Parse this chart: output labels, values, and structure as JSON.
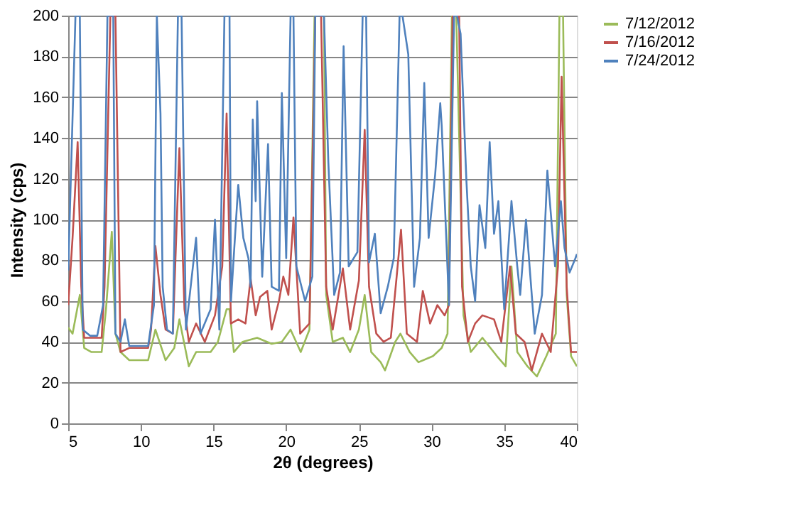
{
  "chart_data": {
    "type": "line",
    "xlabel": "2θ (degrees)",
    "ylabel": "Intensity (cps)",
    "xlim": [
      5,
      40
    ],
    "xticks": [
      5,
      10,
      15,
      20,
      25,
      30,
      35,
      40
    ],
    "ylim": [
      0,
      200
    ],
    "yticks": [
      0,
      20,
      40,
      60,
      80,
      100,
      120,
      140,
      160,
      180,
      200
    ],
    "grid": "y",
    "legend": "right",
    "marker": "none",
    "line_style": "solid",
    "series": [
      {
        "name": "7/12/2012",
        "color": "#9bbb59",
        "x": [
          5.0,
          5.3,
          5.8,
          6.1,
          6.6,
          7.3,
          7.6,
          8.0,
          8.25,
          8.6,
          9.2,
          10.5,
          11.0,
          11.7,
          12.3,
          12.65,
          13.3,
          13.8,
          14.8,
          15.3,
          15.9,
          16.1,
          16.4,
          17.0,
          18.0,
          19.0,
          19.7,
          20.3,
          21.0,
          21.6,
          21.95,
          22.1,
          22.6,
          22.75,
          23.2,
          23.9,
          24.4,
          25.0,
          25.4,
          25.85,
          26.5,
          26.8,
          27.5,
          27.86,
          28.5,
          29.1,
          30.1,
          30.7,
          31.1,
          31.4,
          31.7,
          32.2,
          32.7,
          33.5,
          34.5,
          35.1,
          35.5,
          35.9,
          36.6,
          37.25,
          37.9,
          38.55,
          38.8,
          39.05,
          39.3,
          39.6,
          40.0
        ],
        "values": [
          47,
          44,
          63,
          37,
          35,
          35,
          56,
          94,
          44,
          35,
          31,
          31,
          46,
          31,
          37,
          51,
          28,
          35,
          35,
          40,
          56,
          56,
          35,
          40,
          42,
          39,
          40,
          46,
          35,
          46,
          200,
          200,
          200,
          63,
          40,
          42,
          35,
          46,
          63,
          35,
          30,
          26,
          40,
          44,
          35,
          30,
          33,
          37,
          44,
          200,
          200,
          53,
          35,
          42,
          33,
          28,
          77,
          35,
          28,
          23,
          33,
          44,
          200,
          200,
          63,
          33,
          28
        ]
      },
      {
        "name": "7/16/2012",
        "color": "#c0504d",
        "x": [
          5.0,
          5.3,
          5.65,
          5.9,
          6.1,
          6.6,
          7.3,
          7.5,
          7.9,
          8.25,
          8.6,
          9.2,
          10.5,
          10.7,
          11.0,
          11.35,
          11.7,
          12.2,
          12.45,
          12.65,
          13.0,
          13.3,
          13.8,
          14.4,
          15.1,
          15.6,
          15.9,
          16.2,
          16.7,
          17.2,
          17.55,
          17.9,
          18.2,
          18.7,
          19.0,
          19.5,
          19.8,
          20.15,
          20.5,
          20.96,
          21.6,
          22.0,
          22.4,
          22.75,
          23.2,
          23.9,
          24.4,
          25.0,
          25.4,
          25.7,
          26.2,
          26.7,
          27.2,
          27.6,
          27.9,
          28.3,
          29.0,
          29.4,
          29.9,
          30.4,
          30.9,
          31.2,
          31.45,
          31.9,
          32.1,
          32.5,
          33.0,
          33.5,
          34.3,
          34.8,
          35.4,
          35.8,
          36.4,
          36.9,
          37.6,
          38.2,
          38.7,
          38.95,
          39.3,
          39.6,
          40.0
        ],
        "values": [
          58,
          91,
          138,
          67,
          42,
          42,
          42,
          67,
          200,
          200,
          35,
          37,
          37,
          46,
          87,
          63,
          46,
          44,
          95,
          135,
          56,
          40,
          49,
          40,
          53,
          77,
          152,
          49,
          51,
          49,
          71,
          53,
          62,
          65,
          46,
          60,
          72,
          63,
          101,
          44,
          49,
          200,
          200,
          67,
          46,
          76,
          46,
          70,
          144,
          67,
          44,
          40,
          42,
          72,
          95,
          44,
          40,
          65,
          49,
          58,
          53,
          58,
          200,
          200,
          67,
          40,
          49,
          53,
          51,
          40,
          77,
          44,
          40,
          26,
          44,
          35,
          77,
          170,
          67,
          35,
          35
        ]
      },
      {
        "name": "7/24/2012",
        "color": "#4f81bd",
        "x": [
          5.0,
          5.5,
          5.8,
          6.0,
          6.5,
          7.0,
          7.4,
          7.7,
          8.1,
          8.25,
          8.6,
          8.9,
          9.2,
          10.5,
          10.9,
          11.1,
          11.35,
          11.5,
          11.8,
          12.2,
          12.55,
          12.8,
          13.1,
          13.8,
          14.1,
          14.8,
          15.1,
          15.4,
          15.75,
          16.1,
          16.2,
          16.7,
          17.05,
          17.4,
          17.55,
          17.7,
          17.9,
          18.0,
          18.35,
          18.75,
          19.0,
          19.5,
          19.7,
          20.0,
          20.3,
          20.5,
          20.7,
          21.3,
          21.8,
          22.0,
          22.6,
          22.9,
          23.3,
          23.7,
          23.95,
          24.3,
          24.9,
          25.26,
          25.5,
          25.7,
          26.1,
          26.5,
          26.99,
          27.4,
          27.8,
          28.0,
          28.4,
          28.8,
          29.2,
          29.5,
          29.8,
          30.25,
          30.6,
          30.7,
          31.2,
          31.55,
          31.75,
          32.0,
          32.4,
          32.7,
          33.0,
          33.3,
          33.7,
          34.0,
          34.3,
          34.6,
          35.0,
          35.5,
          35.9,
          36.1,
          36.5,
          37.1,
          37.6,
          37.97,
          38.5,
          38.9,
          39.15,
          39.5,
          39.9,
          40.0
        ],
        "values": [
          75,
          200,
          200,
          46,
          43,
          43,
          58,
          200,
          200,
          44,
          40,
          51,
          38,
          38,
          58,
          200,
          152,
          67,
          46,
          44,
          200,
          200,
          46,
          91,
          44,
          56,
          100,
          46,
          200,
          200,
          60,
          117,
          91,
          81,
          67,
          149,
          109,
          158,
          72,
          137,
          67,
          65,
          162,
          81,
          200,
          200,
          77,
          60,
          72,
          200,
          200,
          128,
          63,
          74,
          185,
          77,
          84,
          200,
          200,
          79,
          93,
          54,
          67,
          81,
          200,
          200,
          181,
          67,
          91,
          167,
          91,
          122,
          157,
          146,
          58,
          200,
          200,
          191,
          119,
          77,
          60,
          107,
          86,
          138,
          93,
          109,
          56,
          109,
          77,
          63,
          100,
          44,
          63,
          124,
          77,
          109,
          86,
          74,
          81,
          83
        ]
      }
    ]
  }
}
